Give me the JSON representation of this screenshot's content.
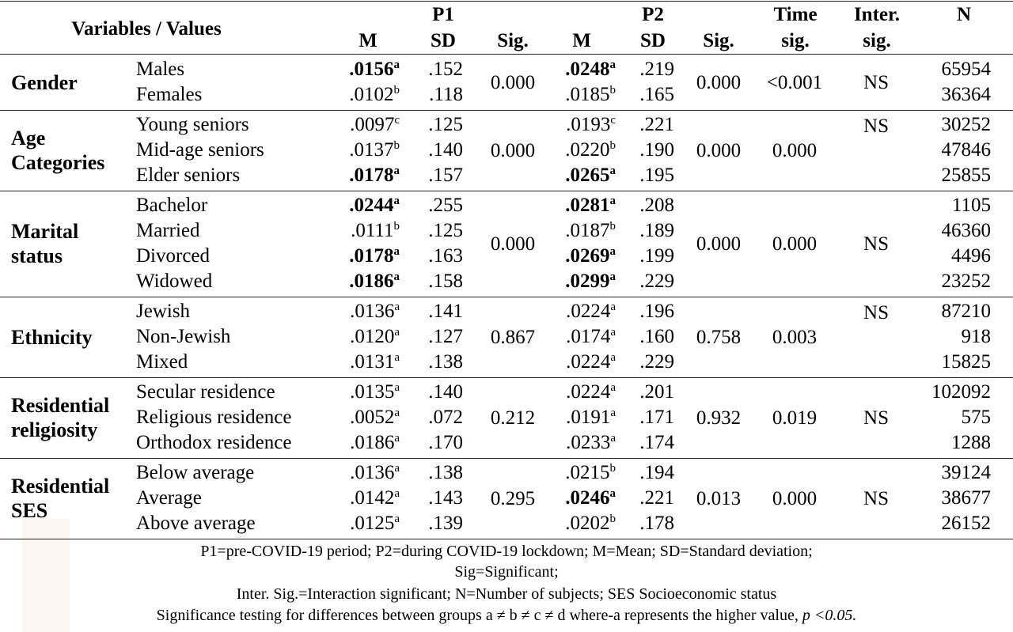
{
  "header": {
    "variables_values": "Variables  /  Values",
    "p1": "P1",
    "p2": "P2",
    "m": "M",
    "sd": "SD",
    "sig": "Sig.",
    "time": "Time",
    "time_sig": "sig.",
    "inter": "Inter.",
    "inter_sig": "sig.",
    "n": "N"
  },
  "groups": [
    {
      "name_lines": [
        "Gender"
      ],
      "p1_sig": "0.000",
      "p2_sig": "0.000",
      "time_sig": "<0.001",
      "inter_sig": "NS",
      "rows": [
        {
          "label": "Males",
          "p1m": ".0156",
          "p1m_sup": "a",
          "p1m_bold": true,
          "p1sd": ".152",
          "p2m": ".0248",
          "p2m_sup": "a",
          "p2m_bold": true,
          "p2sd": ".219",
          "n": "65954"
        },
        {
          "label": "Females",
          "p1m": ".0102",
          "p1m_sup": "b",
          "p1m_bold": false,
          "p1sd": ".118",
          "p2m": ".0185",
          "p2m_sup": "b",
          "p2m_bold": false,
          "p2sd": ".165",
          "n": "36364"
        }
      ]
    },
    {
      "name_lines": [
        "Age",
        "Categories"
      ],
      "p1_sig": "0.000",
      "p2_sig": "0.000",
      "time_sig": "0.000",
      "inter_sig": "NS",
      "rows": [
        {
          "label": "Young seniors",
          "p1m": ".0097",
          "p1m_sup": "c",
          "p1m_bold": false,
          "p1sd": ".125",
          "p2m": ".0193",
          "p2m_sup": "c",
          "p2m_bold": false,
          "p2sd": ".221",
          "n": "30252"
        },
        {
          "label": "Mid-age seniors",
          "p1m": ".0137",
          "p1m_sup": "b",
          "p1m_bold": false,
          "p1sd": ".140",
          "p2m": ".0220",
          "p2m_sup": "b",
          "p2m_bold": false,
          "p2sd": ".190",
          "n": "47846"
        },
        {
          "label": "Elder seniors",
          "p1m": ".0178",
          "p1m_sup": "a",
          "p1m_bold": true,
          "p1sd": ".157",
          "p2m": ".0265",
          "p2m_sup": "a",
          "p2m_bold": true,
          "p2sd": ".195",
          "n": "25855"
        }
      ]
    },
    {
      "name_lines": [
        "Marital",
        "status"
      ],
      "p1_sig": "0.000",
      "p2_sig": "0.000",
      "time_sig": "0.000",
      "inter_sig": "NS",
      "rows": [
        {
          "label": "Bachelor",
          "p1m": ".0244",
          "p1m_sup": "a",
          "p1m_bold": true,
          "p1sd": ".255",
          "p2m": ".0281",
          "p2m_sup": "a",
          "p2m_bold": true,
          "p2sd": ".208",
          "n": "1105"
        },
        {
          "label": "Married",
          "p1m": ".0111",
          "p1m_sup": "b",
          "p1m_bold": false,
          "p1sd": ".125",
          "p2m": ".0187",
          "p2m_sup": "b",
          "p2m_bold": false,
          "p2sd": ".189",
          "n": "46360"
        },
        {
          "label": "Divorced",
          "p1m": ".0178",
          "p1m_sup": "a",
          "p1m_bold": true,
          "p1sd": ".163",
          "p2m": ".0269",
          "p2m_sup": "a",
          "p2m_bold": true,
          "p2sd": ".199",
          "n": "4496"
        },
        {
          "label": "Widowed",
          "p1m": ".0186",
          "p1m_sup": "a",
          "p1m_bold": true,
          "p1sd": ".158",
          "p2m": ".0299",
          "p2m_sup": "a",
          "p2m_bold": true,
          "p2sd": ".229",
          "n": "23252"
        }
      ]
    },
    {
      "name_lines": [
        "Ethnicity"
      ],
      "p1_sig": "0.867",
      "p2_sig": "0.758",
      "time_sig": "0.003",
      "inter_sig": "NS",
      "rows": [
        {
          "label": "Jewish",
          "p1m": ".0136",
          "p1m_sup": "a",
          "p1m_bold": false,
          "p1sd": ".141",
          "p2m": ".0224",
          "p2m_sup": "a",
          "p2m_bold": false,
          "p2sd": ".196",
          "n": "87210"
        },
        {
          "label": "Non-Jewish",
          "p1m": ".0120",
          "p1m_sup": "a",
          "p1m_bold": false,
          "p1sd": ".127",
          "p2m": ".0174",
          "p2m_sup": "a",
          "p2m_bold": false,
          "p2sd": ".160",
          "n": "918"
        },
        {
          "label": "Mixed",
          "p1m": ".0131",
          "p1m_sup": "a",
          "p1m_bold": false,
          "p1sd": ".138",
          "p2m": ".0224",
          "p2m_sup": "a",
          "p2m_bold": false,
          "p2sd": ".229",
          "n": "15825"
        }
      ]
    },
    {
      "name_lines": [
        "Residential",
        "religiosity"
      ],
      "p1_sig": "0.212",
      "p2_sig": "0.932",
      "time_sig": "0.019",
      "inter_sig": "NS",
      "rows": [
        {
          "label": "Secular residence",
          "p1m": ".0135",
          "p1m_sup": "a",
          "p1m_bold": false,
          "p1sd": ".140",
          "p2m": ".0224",
          "p2m_sup": "a",
          "p2m_bold": false,
          "p2sd": ".201",
          "n": "102092"
        },
        {
          "label": "Religious residence",
          "p1m": ".0052",
          "p1m_sup": "a",
          "p1m_bold": false,
          "p1sd": ".072",
          "p2m": ".0191",
          "p2m_sup": "a",
          "p2m_bold": false,
          "p2sd": ".171",
          "n": "575"
        },
        {
          "label": "Orthodox residence",
          "p1m": ".0186",
          "p1m_sup": "a",
          "p1m_bold": false,
          "p1sd": ".170",
          "p2m": ".0233",
          "p2m_sup": "a",
          "p2m_bold": false,
          "p2sd": ".174",
          "n": "1288"
        }
      ]
    },
    {
      "name_lines": [
        "Residential",
        "SES"
      ],
      "p1_sig": "0.295",
      "p2_sig": "0.013",
      "time_sig": "0.000",
      "inter_sig": "NS",
      "rows": [
        {
          "label": "Below average",
          "p1m": ".0136",
          "p1m_sup": "a",
          "p1m_bold": false,
          "p1sd": ".138",
          "p2m": ".0215",
          "p2m_sup": "b",
          "p2m_bold": false,
          "p2sd": ".194",
          "n": "39124"
        },
        {
          "label": "Average",
          "p1m": ".0142",
          "p1m_sup": "a",
          "p1m_bold": false,
          "p1sd": ".143",
          "p2m": ".0246",
          "p2m_sup": "a",
          "p2m_bold": true,
          "p2sd": ".221",
          "n": "38677"
        },
        {
          "label": "Above average",
          "p1m": ".0125",
          "p1m_sup": "a",
          "p1m_bold": false,
          "p1sd": ".139",
          "p2m": ".0202",
          "p2m_sup": "b",
          "p2m_bold": false,
          "p2sd": ".178",
          "n": "26152"
        }
      ]
    }
  ],
  "footnotes": {
    "line1": "P1=pre-COVID-19 period; P2=during COVID-19 lockdown; M=Mean; SD=Standard deviation;",
    "line2": "Sig=Significant;",
    "line3": "Inter. Sig.=Interaction significant; N=Number of subjects; SES Socioeconomic status",
    "line4_prefix": "Significance testing for differences between groups a ≠ b ≠ c ≠ d where-a represents the higher value,",
    "line4_italic": " p <0.05."
  }
}
